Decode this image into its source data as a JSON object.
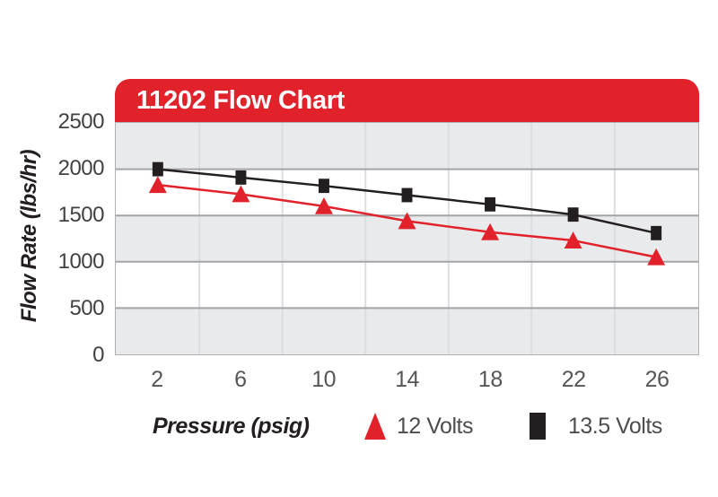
{
  "figure": {
    "banner": {
      "title": "11202 Flow Chart",
      "background": "#e1222b",
      "text_color": "#ffffff"
    }
  },
  "chart_data": {
    "type": "line",
    "title": "11202 Flow Chart",
    "xlabel": "Pressure (psig)",
    "ylabel": "Flow Rate (lbs/hr)",
    "x": [
      2,
      6,
      10,
      14,
      18,
      22,
      26
    ],
    "series": [
      {
        "name": "12 Volts",
        "marker": "triangle",
        "color": "#e1222b",
        "values": [
          1830,
          1730,
          1600,
          1440,
          1320,
          1230,
          1050
        ]
      },
      {
        "name": "13.5 Volts",
        "marker": "square",
        "color": "#231f20",
        "values": [
          2000,
          1910,
          1820,
          1720,
          1620,
          1510,
          1310
        ]
      }
    ],
    "ylim": [
      0,
      2500
    ],
    "yticks": [
      0,
      500,
      1000,
      1500,
      2000,
      2500
    ],
    "grid": {
      "horizontal": true,
      "vertical": "between-categories",
      "band_fill": [
        "#e9eaec",
        "#ffffff"
      ],
      "hgrid_color": "#a2a4a7",
      "vgrid_color": "#dcdde0",
      "border_color": "#aeb0b3"
    },
    "legend_position": "bottom",
    "axis_text_color": "#414042",
    "xtick_text_color": "#555658",
    "legend_text_color": "#4c4d4f"
  }
}
